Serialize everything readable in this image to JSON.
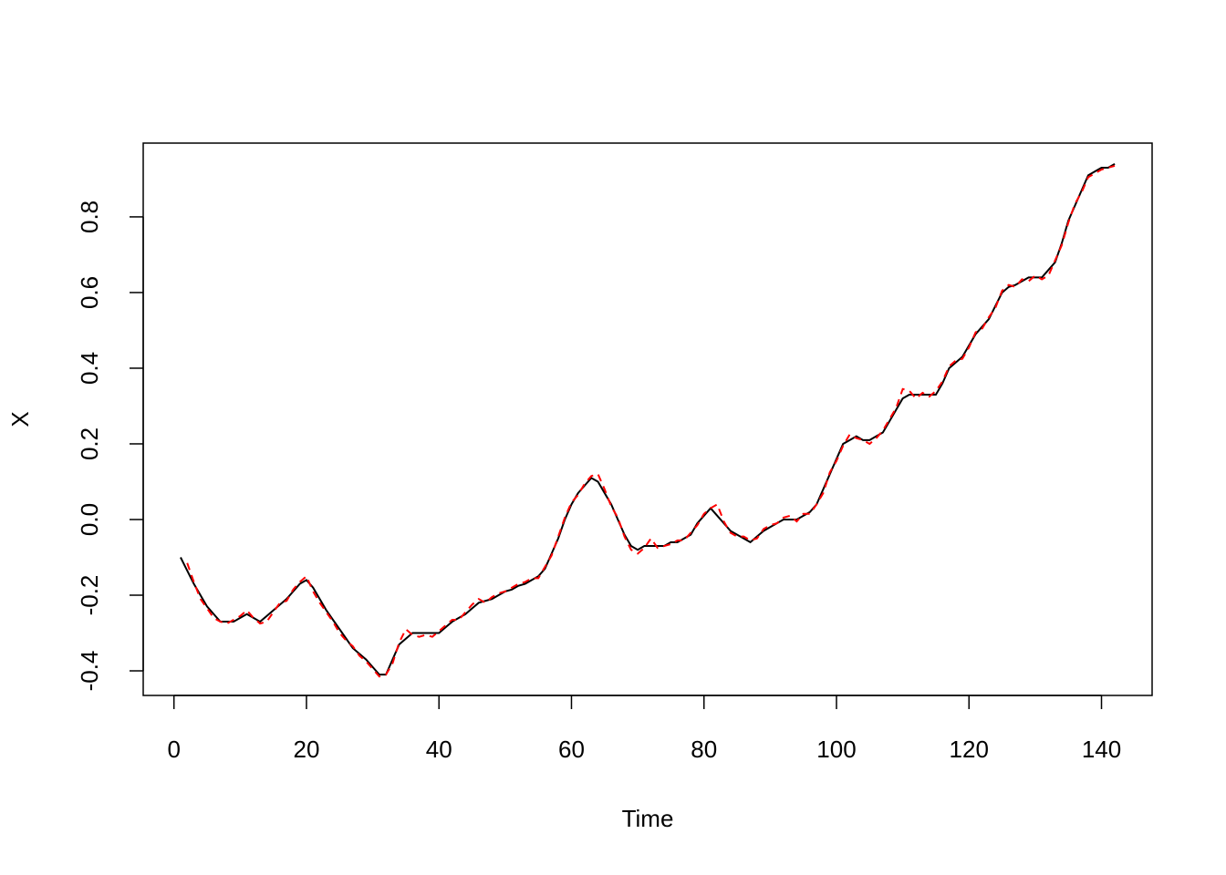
{
  "chart_data": {
    "type": "line",
    "x_label": "Time",
    "y_label": "X",
    "x": [
      1,
      2,
      3,
      4,
      5,
      6,
      7,
      8,
      9,
      10,
      11,
      12,
      13,
      14,
      15,
      16,
      17,
      18,
      19,
      20,
      21,
      22,
      23,
      24,
      25,
      26,
      27,
      28,
      29,
      30,
      31,
      32,
      33,
      34,
      35,
      36,
      37,
      38,
      39,
      40,
      41,
      42,
      43,
      44,
      45,
      46,
      47,
      48,
      49,
      50,
      51,
      52,
      53,
      54,
      55,
      56,
      57,
      58,
      59,
      60,
      61,
      62,
      63,
      64,
      65,
      66,
      67,
      68,
      69,
      70,
      71,
      72,
      73,
      74,
      75,
      76,
      77,
      78,
      79,
      80,
      81,
      82,
      83,
      84,
      85,
      86,
      87,
      88,
      89,
      90,
      91,
      92,
      93,
      94,
      95,
      96,
      97,
      98,
      99,
      100,
      101,
      102,
      103,
      104,
      105,
      106,
      107,
      108,
      109,
      110,
      111,
      112,
      113,
      114,
      115,
      116,
      117,
      118,
      119,
      120,
      121,
      122,
      123,
      124,
      125,
      126,
      127,
      128,
      129,
      130,
      131,
      132,
      133,
      134,
      135,
      136,
      137,
      138,
      139,
      140,
      141,
      142
    ],
    "series": [
      {
        "color": "#000000",
        "dash": false,
        "values": [
          -0.1,
          -0.135,
          -0.17,
          -0.2,
          -0.23,
          -0.25,
          -0.27,
          -0.27,
          -0.27,
          -0.26,
          -0.25,
          -0.26,
          -0.27,
          -0.255,
          -0.24,
          -0.225,
          -0.21,
          -0.19,
          -0.17,
          -0.16,
          -0.18,
          -0.21,
          -0.24,
          -0.265,
          -0.29,
          -0.315,
          -0.34,
          -0.355,
          -0.37,
          -0.39,
          -0.41,
          -0.41,
          -0.37,
          -0.33,
          -0.315,
          -0.3,
          -0.3,
          -0.3,
          -0.3,
          -0.3,
          -0.285,
          -0.27,
          -0.26,
          -0.25,
          -0.235,
          -0.22,
          -0.215,
          -0.21,
          -0.2,
          -0.19,
          -0.185,
          -0.175,
          -0.17,
          -0.16,
          -0.15,
          -0.13,
          -0.09,
          -0.05,
          0.0,
          0.04,
          0.07,
          0.09,
          0.11,
          0.1,
          0.07,
          0.04,
          0.0,
          -0.04,
          -0.07,
          -0.08,
          -0.07,
          -0.07,
          -0.07,
          -0.07,
          -0.06,
          -0.06,
          -0.05,
          -0.04,
          -0.01,
          0.01,
          0.03,
          0.01,
          -0.01,
          -0.03,
          -0.04,
          -0.05,
          -0.06,
          -0.045,
          -0.03,
          -0.02,
          -0.01,
          0.0,
          0.0,
          0.0,
          0.01,
          0.02,
          0.04,
          0.08,
          0.12,
          0.16,
          0.2,
          0.21,
          0.22,
          0.21,
          0.21,
          0.22,
          0.23,
          0.26,
          0.29,
          0.32,
          0.33,
          0.33,
          0.33,
          0.33,
          0.33,
          0.36,
          0.4,
          0.415,
          0.43,
          0.46,
          0.49,
          0.51,
          0.53,
          0.565,
          0.6,
          0.615,
          0.62,
          0.63,
          0.64,
          0.64,
          0.64,
          0.66,
          0.68,
          0.73,
          0.79,
          0.83,
          0.87,
          0.91,
          0.92,
          0.93,
          0.93,
          0.94
        ]
      },
      {
        "color": "#ff0000",
        "dash": true,
        "values": [
          null,
          -0.115,
          -0.165,
          -0.21,
          -0.235,
          -0.26,
          -0.27,
          -0.275,
          -0.265,
          -0.255,
          -0.24,
          -0.26,
          -0.275,
          -0.27,
          -0.245,
          -0.22,
          -0.215,
          -0.185,
          -0.165,
          -0.15,
          -0.19,
          -0.22,
          -0.245,
          -0.27,
          -0.3,
          -0.32,
          -0.335,
          -0.36,
          -0.375,
          -0.395,
          -0.415,
          -0.41,
          -0.38,
          -0.325,
          -0.29,
          -0.305,
          -0.31,
          -0.305,
          -0.31,
          -0.295,
          -0.28,
          -0.265,
          -0.265,
          -0.245,
          -0.225,
          -0.21,
          -0.22,
          -0.205,
          -0.195,
          -0.19,
          -0.18,
          -0.17,
          -0.165,
          -0.155,
          -0.155,
          -0.125,
          -0.095,
          -0.045,
          0.005,
          0.045,
          0.065,
          0.095,
          0.115,
          0.12,
          0.08,
          0.035,
          0.005,
          -0.045,
          -0.08,
          -0.09,
          -0.075,
          -0.05,
          -0.075,
          -0.07,
          -0.065,
          -0.055,
          -0.055,
          -0.035,
          -0.015,
          0.015,
          0.03,
          0.04,
          -0.005,
          -0.035,
          -0.045,
          -0.045,
          -0.055,
          -0.05,
          -0.025,
          -0.015,
          -0.01,
          0.005,
          0.01,
          -0.005,
          0.015,
          0.015,
          0.04,
          0.07,
          0.125,
          0.155,
          0.195,
          0.225,
          0.215,
          0.21,
          0.2,
          0.215,
          0.235,
          0.265,
          0.295,
          0.345,
          0.34,
          0.32,
          0.335,
          0.325,
          0.34,
          0.365,
          0.405,
          0.42,
          0.425,
          0.455,
          0.495,
          0.505,
          0.535,
          0.56,
          0.605,
          0.62,
          0.615,
          0.635,
          0.63,
          0.645,
          0.635,
          0.645,
          0.685,
          0.725,
          0.785,
          0.835,
          0.865,
          0.905,
          0.915,
          0.925,
          0.93,
          0.935
        ]
      }
    ],
    "xlim": [
      -4.64,
      147.64
    ],
    "xticks": [
      0,
      20,
      40,
      60,
      80,
      100,
      120,
      140
    ],
    "ylim": [
      -0.465,
      0.995
    ],
    "yticks": [
      -0.4,
      -0.2,
      {
        "value": 0,
        "label": "0.0"
      },
      0.2,
      0.4,
      0.6,
      0.8
    ]
  }
}
